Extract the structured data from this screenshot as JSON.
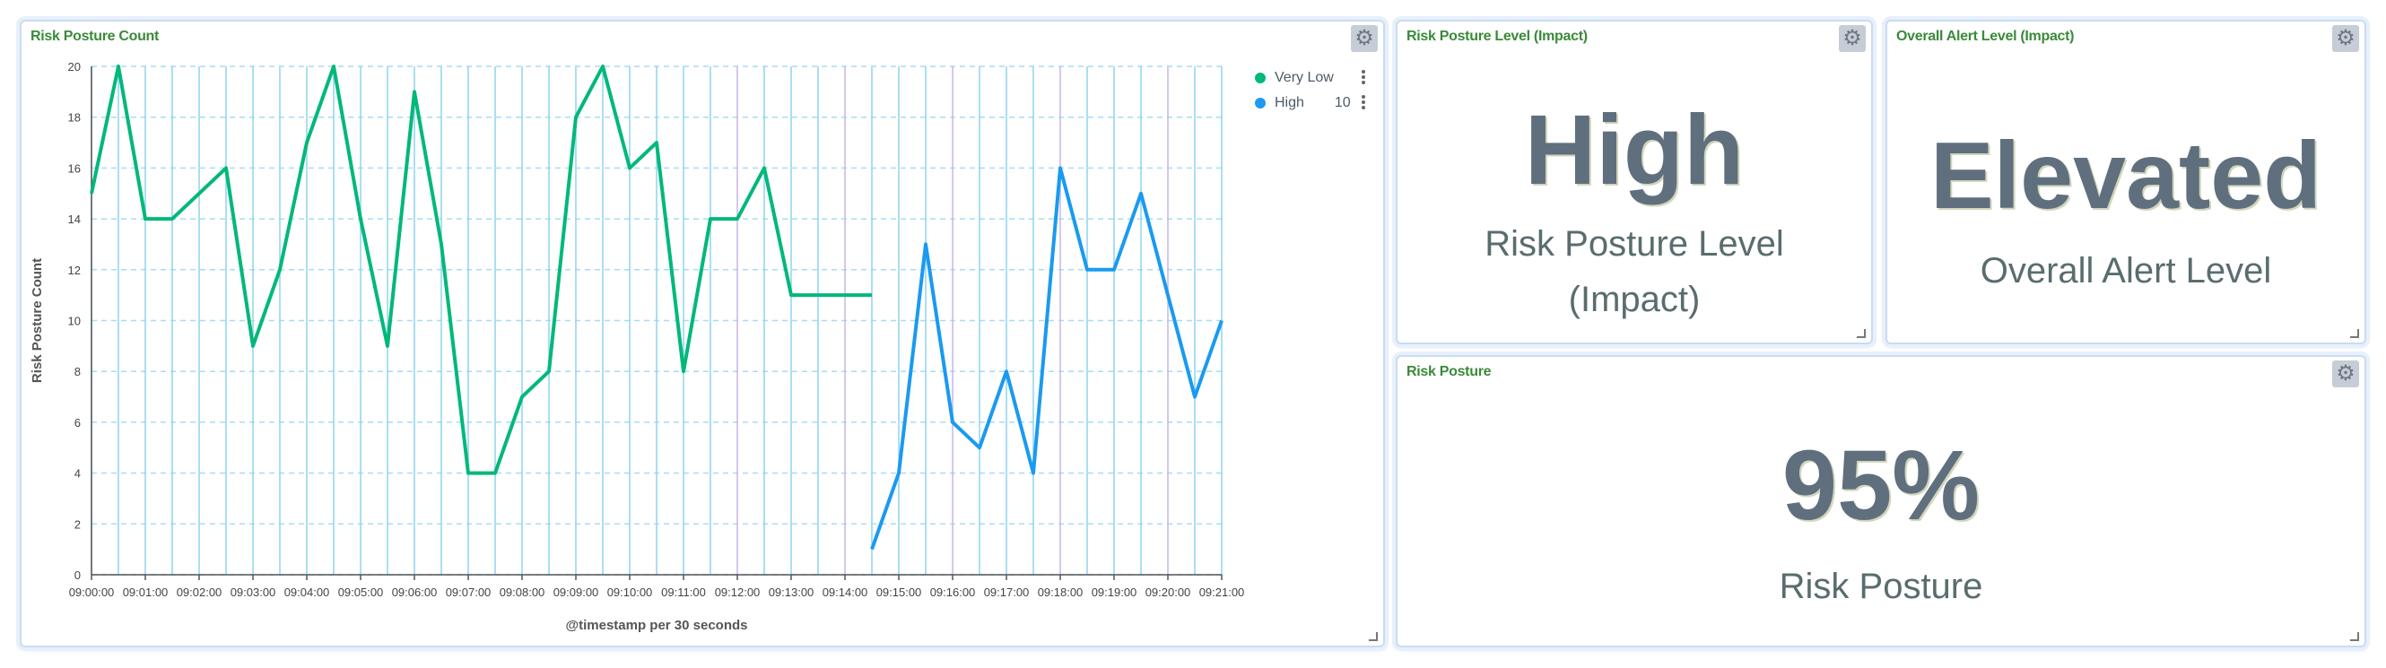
{
  "panels": {
    "chart": {
      "title": "Risk Posture Count"
    },
    "risk_level": {
      "title": "Risk Posture Level (Impact)",
      "value": "High",
      "label_line1": "Risk Posture Level",
      "label_line2": "(Impact)"
    },
    "alert_level": {
      "title": "Overall Alert Level (Impact)",
      "value": "Elevated",
      "label": "Overall Alert Level"
    },
    "risk_posture": {
      "title": "Risk Posture",
      "value": "95%",
      "label": "Risk Posture"
    }
  },
  "icons": {
    "settings": "gear-icon",
    "resize": "resize-handle-icon",
    "legend_menu": "vertical-dots-icon"
  },
  "chart_data": {
    "type": "line",
    "ylabel": "Risk Posture Count",
    "xlabel": "@timestamp per 30 seconds",
    "ylim": [
      0,
      20
    ],
    "yticks": [
      0,
      2,
      4,
      6,
      8,
      10,
      12,
      14,
      16,
      18,
      20
    ],
    "xticks": [
      "09:00:00",
      "09:01:00",
      "09:02:00",
      "09:03:00",
      "09:04:00",
      "09:05:00",
      "09:06:00",
      "09:07:00",
      "09:08:00",
      "09:09:00",
      "09:10:00",
      "09:11:00",
      "09:12:00",
      "09:13:00",
      "09:14:00",
      "09:15:00",
      "09:16:00",
      "09:17:00",
      "09:18:00",
      "09:19:00",
      "09:20:00",
      "09:21:00"
    ],
    "x_range": [
      "09:00:00",
      "09:21:00"
    ],
    "legend_position": "top-right",
    "series": [
      {
        "name": "Very Low",
        "color": "#00b87a",
        "points": [
          [
            "09:00:00",
            15
          ],
          [
            "09:00:30",
            20
          ],
          [
            "09:01:00",
            14
          ],
          [
            "09:01:30",
            14
          ],
          [
            "09:02:00",
            15
          ],
          [
            "09:02:30",
            16
          ],
          [
            "09:03:00",
            9
          ],
          [
            "09:03:30",
            12
          ],
          [
            "09:04:00",
            17
          ],
          [
            "09:04:30",
            20
          ],
          [
            "09:05:00",
            14
          ],
          [
            "09:05:30",
            9
          ],
          [
            "09:06:00",
            19
          ],
          [
            "09:06:30",
            13
          ],
          [
            "09:07:00",
            4
          ],
          [
            "09:07:30",
            4
          ],
          [
            "09:08:00",
            7
          ],
          [
            "09:08:30",
            8
          ],
          [
            "09:09:00",
            18
          ],
          [
            "09:09:30",
            20
          ],
          [
            "09:10:00",
            16
          ],
          [
            "09:10:30",
            17
          ],
          [
            "09:11:00",
            8
          ],
          [
            "09:11:30",
            14
          ],
          [
            "09:12:00",
            14
          ],
          [
            "09:12:30",
            16
          ],
          [
            "09:13:00",
            11
          ],
          [
            "09:13:30",
            11
          ],
          [
            "09:14:00",
            11
          ],
          [
            "09:14:30",
            11
          ]
        ]
      },
      {
        "name": "High",
        "value_label": "10",
        "color": "#1a9af0",
        "points": [
          [
            "09:14:30",
            1
          ],
          [
            "09:15:00",
            4
          ],
          [
            "09:15:30",
            13
          ],
          [
            "09:16:00",
            6
          ],
          [
            "09:16:30",
            5
          ],
          [
            "09:17:00",
            8
          ],
          [
            "09:17:30",
            4
          ],
          [
            "09:18:00",
            16
          ],
          [
            "09:18:30",
            12
          ],
          [
            "09:19:00",
            12
          ],
          [
            "09:19:30",
            15
          ],
          [
            "09:20:00",
            11
          ],
          [
            "09:20:30",
            7
          ],
          [
            "09:21:00",
            10
          ]
        ]
      }
    ]
  }
}
